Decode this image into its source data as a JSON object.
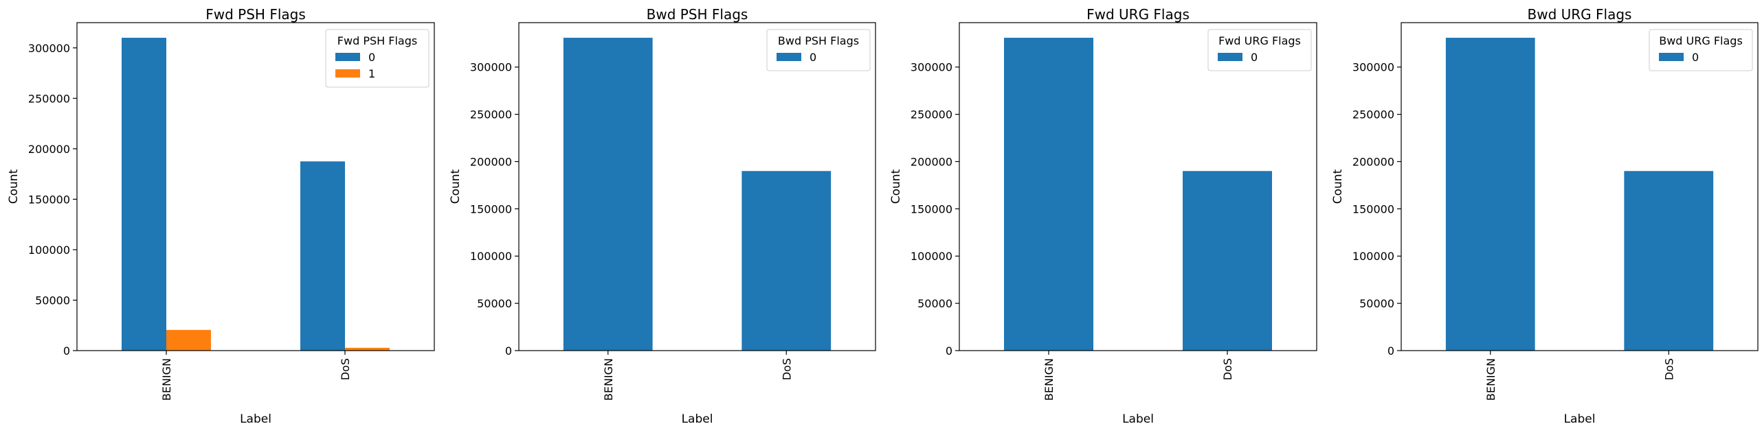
{
  "chart_data": [
    {
      "type": "bar",
      "title": "Fwd PSH Flags",
      "xlabel": "Label",
      "ylabel": "Count",
      "categories": [
        "BENIGN",
        "DoS"
      ],
      "series": [
        {
          "name": "0",
          "values": [
            310000,
            187500
          ],
          "color": "#1f77b4"
        },
        {
          "name": "1",
          "values": [
            20500,
            2800
          ],
          "color": "#ff7f0e"
        }
      ],
      "ylim": [
        0,
        325000
      ],
      "yticks": [
        0,
        50000,
        100000,
        150000,
        200000,
        250000,
        300000
      ],
      "legend_title": "Fwd PSH Flags",
      "legend_position": "top-right",
      "grid": false
    },
    {
      "type": "bar",
      "title": "Bwd PSH Flags",
      "xlabel": "Label",
      "ylabel": "Count",
      "categories": [
        "BENIGN",
        "DoS"
      ],
      "series": [
        {
          "name": "0",
          "values": [
            331000,
            190000
          ],
          "color": "#1f77b4"
        }
      ],
      "ylim": [
        0,
        347000
      ],
      "yticks": [
        0,
        50000,
        100000,
        150000,
        200000,
        250000,
        300000
      ],
      "legend_title": "Bwd PSH Flags",
      "legend_position": "top-right",
      "grid": false
    },
    {
      "type": "bar",
      "title": "Fwd URG Flags",
      "xlabel": "Label",
      "ylabel": "Count",
      "categories": [
        "BENIGN",
        "DoS"
      ],
      "series": [
        {
          "name": "0",
          "values": [
            331000,
            190000
          ],
          "color": "#1f77b4"
        }
      ],
      "ylim": [
        0,
        347000
      ],
      "yticks": [
        0,
        50000,
        100000,
        150000,
        200000,
        250000,
        300000
      ],
      "legend_title": "Fwd URG Flags",
      "legend_position": "top-right",
      "grid": false
    },
    {
      "type": "bar",
      "title": "Bwd URG Flags",
      "xlabel": "Label",
      "ylabel": "Count",
      "categories": [
        "BENIGN",
        "DoS"
      ],
      "series": [
        {
          "name": "0",
          "values": [
            331000,
            190000
          ],
          "color": "#1f77b4"
        }
      ],
      "ylim": [
        0,
        347000
      ],
      "yticks": [
        0,
        50000,
        100000,
        150000,
        200000,
        250000,
        300000
      ],
      "legend_title": "Bwd URG Flags",
      "legend_position": "top-right",
      "grid": false
    }
  ]
}
